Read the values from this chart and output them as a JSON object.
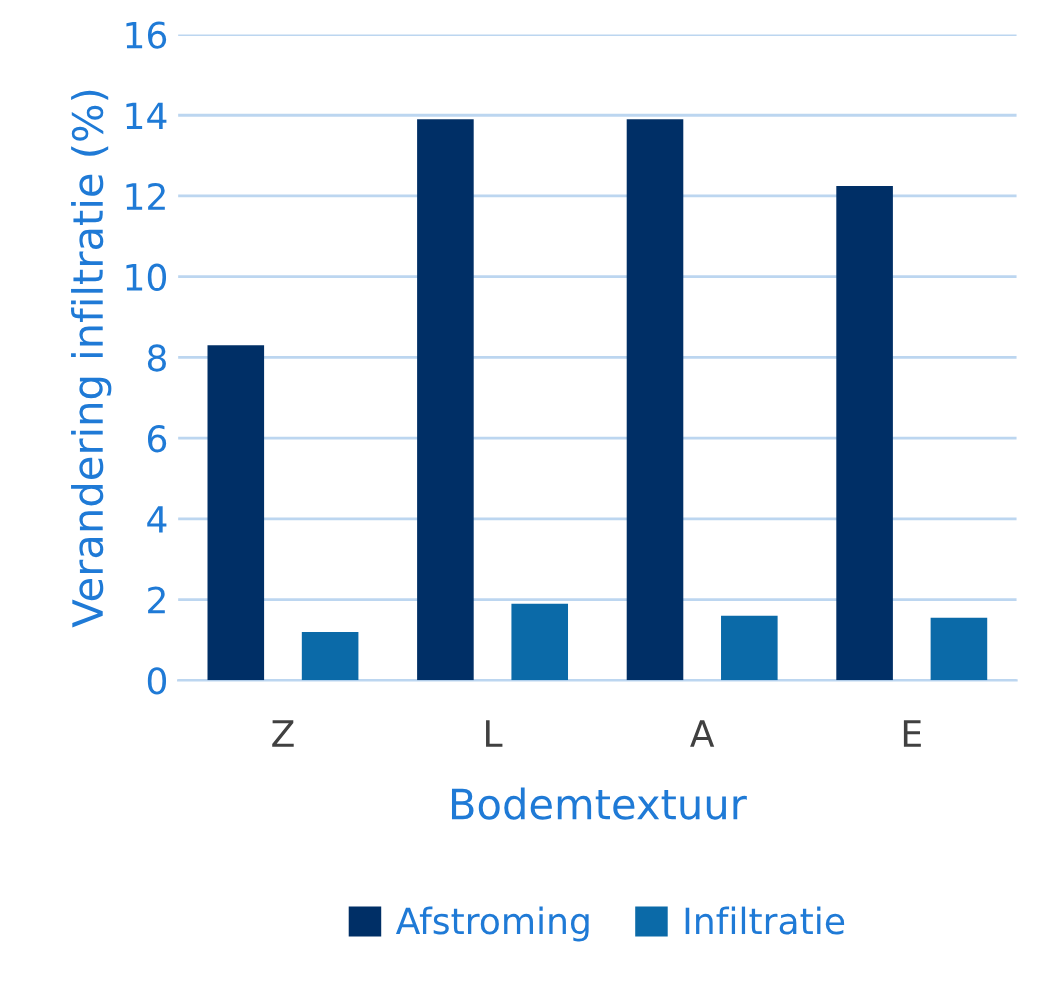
{
  "chart_data": {
    "type": "bar",
    "xlabel": "Bodemtextuur",
    "ylabel": "Verandering infiltratie (%)",
    "categories": [
      "Z",
      "L",
      "A",
      "E"
    ],
    "series": [
      {
        "name": "Afstroming",
        "color": "#002f66",
        "values": [
          8.3,
          13.9,
          13.9,
          12.25
        ]
      },
      {
        "name": "Infiltratie",
        "color": "#0b6aa8",
        "values": [
          1.2,
          1.9,
          1.6,
          1.55
        ]
      }
    ],
    "ylim": [
      0,
      16
    ],
    "yticks": [
      0,
      2,
      4,
      6,
      8,
      10,
      12,
      14,
      16
    ],
    "grid": "y",
    "legend": "bottom"
  }
}
